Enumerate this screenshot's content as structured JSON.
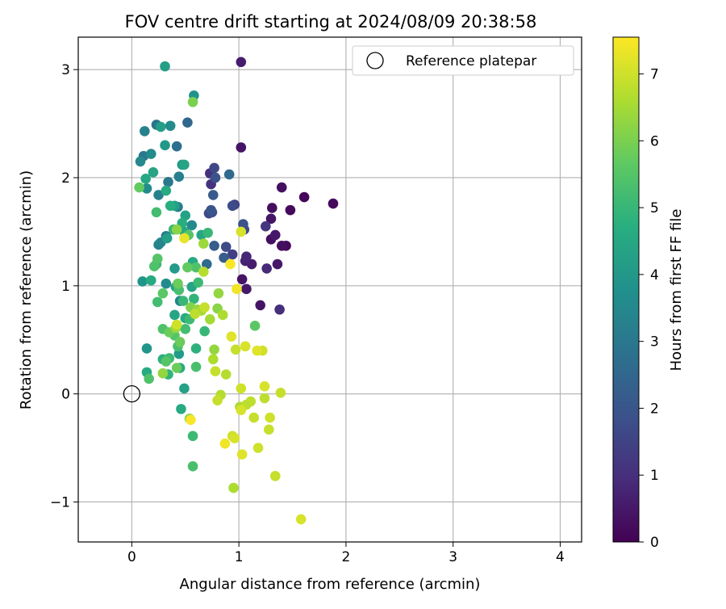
{
  "chart_data": {
    "type": "scatter",
    "title": "FOV centre drift starting at 2024/08/09 20:38:58",
    "xlabel": "Angular distance from reference (arcmin)",
    "ylabel": "Rotation from reference (arcmin)",
    "xlim": [
      -0.5,
      4.2
    ],
    "ylim": [
      -1.37,
      3.3
    ],
    "xticks": [
      0,
      1,
      2,
      3,
      4
    ],
    "xtick_labels": [
      "0",
      "1",
      "2",
      "3",
      "4"
    ],
    "yticks": [
      -1,
      0,
      1,
      2,
      3
    ],
    "ytick_labels": [
      "−1",
      "0",
      "1",
      "2",
      "3"
    ],
    "grid": true,
    "legend": {
      "position": "top-right",
      "entries": [
        {
          "label": "Reference platepar",
          "marker": "open-circle"
        }
      ]
    },
    "reference_point": {
      "x": 0,
      "y": 0
    },
    "colorbar": {
      "label": "Hours from first FF file",
      "colormap": "viridis",
      "range": [
        0,
        7.55
      ],
      "ticks": [
        0,
        1,
        2,
        3,
        4,
        5,
        6,
        7
      ],
      "tick_labels": [
        "0",
        "1",
        "2",
        "3",
        "4",
        "5",
        "6",
        "7"
      ]
    },
    "points": [
      {
        "x": 1.02,
        "y": 3.07,
        "h": 0.6
      },
      {
        "x": 1.02,
        "y": 2.28,
        "h": 0.4
      },
      {
        "x": 1.88,
        "y": 1.76,
        "h": 0.2
      },
      {
        "x": 1.61,
        "y": 1.82,
        "h": 0.1
      },
      {
        "x": 1.4,
        "y": 1.91,
        "h": 0.3
      },
      {
        "x": 1.31,
        "y": 1.72,
        "h": 0.3
      },
      {
        "x": 1.48,
        "y": 1.7,
        "h": 0.2
      },
      {
        "x": 1.3,
        "y": 1.62,
        "h": 0.4
      },
      {
        "x": 1.25,
        "y": 1.55,
        "h": 1.2
      },
      {
        "x": 1.34,
        "y": 1.47,
        "h": 0.5
      },
      {
        "x": 1.3,
        "y": 1.43,
        "h": 0.3
      },
      {
        "x": 1.4,
        "y": 1.37,
        "h": 0.3
      },
      {
        "x": 1.44,
        "y": 1.37,
        "h": 0.2
      },
      {
        "x": 1.36,
        "y": 1.2,
        "h": 0.5
      },
      {
        "x": 1.26,
        "y": 1.16,
        "h": 0.9
      },
      {
        "x": 1.38,
        "y": 0.78,
        "h": 1.0
      },
      {
        "x": 1.2,
        "y": 0.82,
        "h": 0.4
      },
      {
        "x": 1.07,
        "y": 1.27,
        "h": 0.8
      },
      {
        "x": 1.12,
        "y": 1.2,
        "h": 0.6
      },
      {
        "x": 1.06,
        "y": 1.23,
        "h": 0.7
      },
      {
        "x": 1.03,
        "y": 1.06,
        "h": 0.4
      },
      {
        "x": 1.07,
        "y": 0.97,
        "h": 0.5
      },
      {
        "x": 0.96,
        "y": 1.75,
        "h": 1.5
      },
      {
        "x": 0.94,
        "y": 1.74,
        "h": 1.7
      },
      {
        "x": 0.73,
        "y": 2.04,
        "h": 1.0
      },
      {
        "x": 0.74,
        "y": 1.94,
        "h": 1.1
      },
      {
        "x": 0.77,
        "y": 2.09,
        "h": 1.6
      },
      {
        "x": 0.78,
        "y": 2.0,
        "h": 1.9
      },
      {
        "x": 0.76,
        "y": 1.84,
        "h": 2.1
      },
      {
        "x": 0.74,
        "y": 1.7,
        "h": 2.0
      },
      {
        "x": 0.75,
        "y": 1.68,
        "h": 1.8
      },
      {
        "x": 0.72,
        "y": 1.67,
        "h": 1.6
      },
      {
        "x": 0.91,
        "y": 2.03,
        "h": 2.6
      },
      {
        "x": 1.04,
        "y": 1.57,
        "h": 1.9
      },
      {
        "x": 1.05,
        "y": 1.52,
        "h": 1.7
      },
      {
        "x": 0.88,
        "y": 1.36,
        "h": 1.7
      },
      {
        "x": 0.77,
        "y": 1.37,
        "h": 2.2
      },
      {
        "x": 0.86,
        "y": 1.26,
        "h": 2.2
      },
      {
        "x": 0.94,
        "y": 1.29,
        "h": 1.4
      },
      {
        "x": 0.7,
        "y": 1.2,
        "h": 2.6
      },
      {
        "x": 0.52,
        "y": 2.51,
        "h": 2.5
      },
      {
        "x": 0.42,
        "y": 2.29,
        "h": 2.7
      },
      {
        "x": 0.31,
        "y": 2.3,
        "h": 4.0
      },
      {
        "x": 0.23,
        "y": 2.49,
        "h": 2.9
      },
      {
        "x": 0.27,
        "y": 2.47,
        "h": 4.2
      },
      {
        "x": 0.12,
        "y": 2.43,
        "h": 3.3
      },
      {
        "x": 0.36,
        "y": 2.48,
        "h": 3.6
      },
      {
        "x": 0.58,
        "y": 2.76,
        "h": 3.8
      },
      {
        "x": 0.57,
        "y": 2.7,
        "h": 6.0
      },
      {
        "x": 0.31,
        "y": 3.03,
        "h": 4.2
      },
      {
        "x": 0.18,
        "y": 2.22,
        "h": 3.6
      },
      {
        "x": 0.11,
        "y": 2.2,
        "h": 3.0
      },
      {
        "x": 0.08,
        "y": 2.15,
        "h": 3.5
      },
      {
        "x": 0.2,
        "y": 2.05,
        "h": 4.4
      },
      {
        "x": 0.13,
        "y": 1.99,
        "h": 4.5
      },
      {
        "x": 0.07,
        "y": 1.91,
        "h": 5.7
      },
      {
        "x": 0.14,
        "y": 1.9,
        "h": 3.6
      },
      {
        "x": 0.25,
        "y": 1.84,
        "h": 3.3
      },
      {
        "x": 0.34,
        "y": 1.96,
        "h": 3.0
      },
      {
        "x": 0.44,
        "y": 2.01,
        "h": 3.2
      },
      {
        "x": 0.47,
        "y": 2.12,
        "h": 4.0
      },
      {
        "x": 0.49,
        "y": 2.12,
        "h": 4.4
      },
      {
        "x": 0.32,
        "y": 1.88,
        "h": 4.6
      },
      {
        "x": 0.43,
        "y": 1.73,
        "h": 3.1
      },
      {
        "x": 0.36,
        "y": 1.74,
        "h": 4.7
      },
      {
        "x": 0.4,
        "y": 1.74,
        "h": 4.3
      },
      {
        "x": 0.23,
        "y": 1.68,
        "h": 5.2
      },
      {
        "x": 0.47,
        "y": 1.58,
        "h": 4.7
      },
      {
        "x": 0.5,
        "y": 1.65,
        "h": 4.3
      },
      {
        "x": 0.56,
        "y": 1.56,
        "h": 3.6
      },
      {
        "x": 0.39,
        "y": 1.52,
        "h": 5.0
      },
      {
        "x": 0.42,
        "y": 1.52,
        "h": 6.2
      },
      {
        "x": 0.49,
        "y": 1.5,
        "h": 4.5
      },
      {
        "x": 0.53,
        "y": 1.47,
        "h": 5.5
      },
      {
        "x": 0.32,
        "y": 1.46,
        "h": 3.1
      },
      {
        "x": 0.27,
        "y": 1.4,
        "h": 3.4
      },
      {
        "x": 0.25,
        "y": 1.38,
        "h": 3.3
      },
      {
        "x": 0.33,
        "y": 1.44,
        "h": 4.2
      },
      {
        "x": 0.49,
        "y": 1.44,
        "h": 7.3
      },
      {
        "x": 0.65,
        "y": 1.47,
        "h": 4.5
      },
      {
        "x": 0.71,
        "y": 1.49,
        "h": 5.0
      },
      {
        "x": 0.67,
        "y": 1.39,
        "h": 6.4
      },
      {
        "x": 0.24,
        "y": 1.25,
        "h": 5.5
      },
      {
        "x": 0.23,
        "y": 1.2,
        "h": 5.0
      },
      {
        "x": 0.21,
        "y": 1.18,
        "h": 5.4
      },
      {
        "x": 0.4,
        "y": 1.16,
        "h": 4.1
      },
      {
        "x": 0.52,
        "y": 1.17,
        "h": 5.7
      },
      {
        "x": 0.57,
        "y": 1.22,
        "h": 4.6
      },
      {
        "x": 0.6,
        "y": 1.17,
        "h": 5.4
      },
      {
        "x": 0.67,
        "y": 1.13,
        "h": 6.7
      },
      {
        "x": 0.1,
        "y": 1.04,
        "h": 3.9
      },
      {
        "x": 0.18,
        "y": 1.05,
        "h": 4.6
      },
      {
        "x": 0.32,
        "y": 1.02,
        "h": 3.6
      },
      {
        "x": 0.43,
        "y": 1.02,
        "h": 5.8
      },
      {
        "x": 0.41,
        "y": 0.99,
        "h": 4.4
      },
      {
        "x": 0.44,
        "y": 0.96,
        "h": 5.3
      },
      {
        "x": 0.56,
        "y": 0.99,
        "h": 4.4
      },
      {
        "x": 0.62,
        "y": 1.03,
        "h": 5.1
      },
      {
        "x": 0.24,
        "y": 0.85,
        "h": 5.2
      },
      {
        "x": 0.29,
        "y": 0.93,
        "h": 5.6
      },
      {
        "x": 0.45,
        "y": 0.86,
        "h": 3.4
      },
      {
        "x": 0.48,
        "y": 0.86,
        "h": 5.0
      },
      {
        "x": 0.58,
        "y": 0.88,
        "h": 4.9
      },
      {
        "x": 0.55,
        "y": 0.8,
        "h": 6.1
      },
      {
        "x": 0.59,
        "y": 0.74,
        "h": 6.8
      },
      {
        "x": 0.65,
        "y": 0.77,
        "h": 6.5
      },
      {
        "x": 0.68,
        "y": 0.8,
        "h": 6.9
      },
      {
        "x": 0.61,
        "y": 0.78,
        "h": 6.3
      },
      {
        "x": 0.8,
        "y": 0.79,
        "h": 6.2
      },
      {
        "x": 0.81,
        "y": 0.93,
        "h": 6.3
      },
      {
        "x": 0.4,
        "y": 0.73,
        "h": 4.4
      },
      {
        "x": 0.5,
        "y": 0.7,
        "h": 4.6
      },
      {
        "x": 0.54,
        "y": 0.69,
        "h": 5.1
      },
      {
        "x": 0.73,
        "y": 0.69,
        "h": 6.5
      },
      {
        "x": 0.85,
        "y": 0.73,
        "h": 6.6
      },
      {
        "x": 0.42,
        "y": 0.64,
        "h": 7.0
      },
      {
        "x": 0.41,
        "y": 0.61,
        "h": 6.4
      },
      {
        "x": 0.29,
        "y": 0.6,
        "h": 5.4
      },
      {
        "x": 0.35,
        "y": 0.57,
        "h": 5.8
      },
      {
        "x": 0.4,
        "y": 0.54,
        "h": 5.5
      },
      {
        "x": 0.5,
        "y": 0.6,
        "h": 5.2
      },
      {
        "x": 0.68,
        "y": 0.58,
        "h": 5.0
      },
      {
        "x": 0.45,
        "y": 0.48,
        "h": 5.8
      },
      {
        "x": 0.43,
        "y": 0.44,
        "h": 5.3
      },
      {
        "x": 0.44,
        "y": 0.37,
        "h": 4.1
      },
      {
        "x": 0.6,
        "y": 0.42,
        "h": 4.8
      },
      {
        "x": 0.32,
        "y": 0.3,
        "h": 5.5
      },
      {
        "x": 0.35,
        "y": 0.33,
        "h": 5.1
      },
      {
        "x": 0.29,
        "y": 0.32,
        "h": 4.8
      },
      {
        "x": 0.14,
        "y": 0.42,
        "h": 3.9
      },
      {
        "x": 0.14,
        "y": 0.2,
        "h": 4.6
      },
      {
        "x": 0.16,
        "y": 0.14,
        "h": 5.4
      },
      {
        "x": 0.29,
        "y": 0.19,
        "h": 6.3
      },
      {
        "x": 0.34,
        "y": 0.18,
        "h": 4.9
      },
      {
        "x": 0.42,
        "y": 0.24,
        "h": 5.8
      },
      {
        "x": 0.45,
        "y": 0.24,
        "h": 4.6
      },
      {
        "x": 0.6,
        "y": 0.25,
        "h": 5.3
      },
      {
        "x": 0.49,
        "y": 0.05,
        "h": 4.3
      },
      {
        "x": 0.46,
        "y": -0.14,
        "h": 4.6
      },
      {
        "x": 0.54,
        "y": -0.23,
        "h": 6.1
      },
      {
        "x": 0.55,
        "y": -0.24,
        "h": 7.5
      },
      {
        "x": 0.57,
        "y": -0.39,
        "h": 5.1
      },
      {
        "x": 0.57,
        "y": -0.67,
        "h": 5.3
      },
      {
        "x": 0.76,
        "y": 0.32,
        "h": 6.6
      },
      {
        "x": 0.77,
        "y": 0.41,
        "h": 6.3
      },
      {
        "x": 0.78,
        "y": 0.21,
        "h": 6.9
      },
      {
        "x": 0.88,
        "y": 0.18,
        "h": 6.7
      },
      {
        "x": 0.93,
        "y": 0.53,
        "h": 7.2
      },
      {
        "x": 0.97,
        "y": 0.41,
        "h": 6.9
      },
      {
        "x": 1.06,
        "y": 0.44,
        "h": 7.1
      },
      {
        "x": 1.17,
        "y": 0.4,
        "h": 7.2
      },
      {
        "x": 1.22,
        "y": 0.4,
        "h": 7.0
      },
      {
        "x": 1.15,
        "y": 0.63,
        "h": 5.6
      },
      {
        "x": 0.83,
        "y": -0.01,
        "h": 6.7
      },
      {
        "x": 0.8,
        "y": -0.06,
        "h": 6.9
      },
      {
        "x": 1.02,
        "y": 0.05,
        "h": 7.0
      },
      {
        "x": 1.01,
        "y": -0.12,
        "h": 6.6
      },
      {
        "x": 1.02,
        "y": -0.15,
        "h": 7.1
      },
      {
        "x": 1.07,
        "y": -0.1,
        "h": 6.8
      },
      {
        "x": 1.11,
        "y": -0.07,
        "h": 6.8
      },
      {
        "x": 1.14,
        "y": -0.22,
        "h": 6.9
      },
      {
        "x": 1.24,
        "y": 0.07,
        "h": 7.1
      },
      {
        "x": 1.24,
        "y": -0.04,
        "h": 6.8
      },
      {
        "x": 1.29,
        "y": -0.22,
        "h": 7.0
      },
      {
        "x": 1.28,
        "y": -0.33,
        "h": 6.9
      },
      {
        "x": 1.39,
        "y": 0.01,
        "h": 6.9
      },
      {
        "x": 0.87,
        "y": -0.46,
        "h": 7.4
      },
      {
        "x": 0.94,
        "y": -0.39,
        "h": 7.0
      },
      {
        "x": 0.96,
        "y": -0.41,
        "h": 7.1
      },
      {
        "x": 1.03,
        "y": -0.56,
        "h": 7.2
      },
      {
        "x": 1.18,
        "y": -0.5,
        "h": 7.0
      },
      {
        "x": 1.34,
        "y": -0.76,
        "h": 6.9
      },
      {
        "x": 0.95,
        "y": -0.87,
        "h": 6.6
      },
      {
        "x": 1.58,
        "y": -1.16,
        "h": 7.1
      },
      {
        "x": 0.92,
        "y": 1.2,
        "h": 7.5
      },
      {
        "x": 0.98,
        "y": 0.97,
        "h": 7.4
      },
      {
        "x": 1.02,
        "y": 1.5,
        "h": 7.1
      }
    ]
  }
}
